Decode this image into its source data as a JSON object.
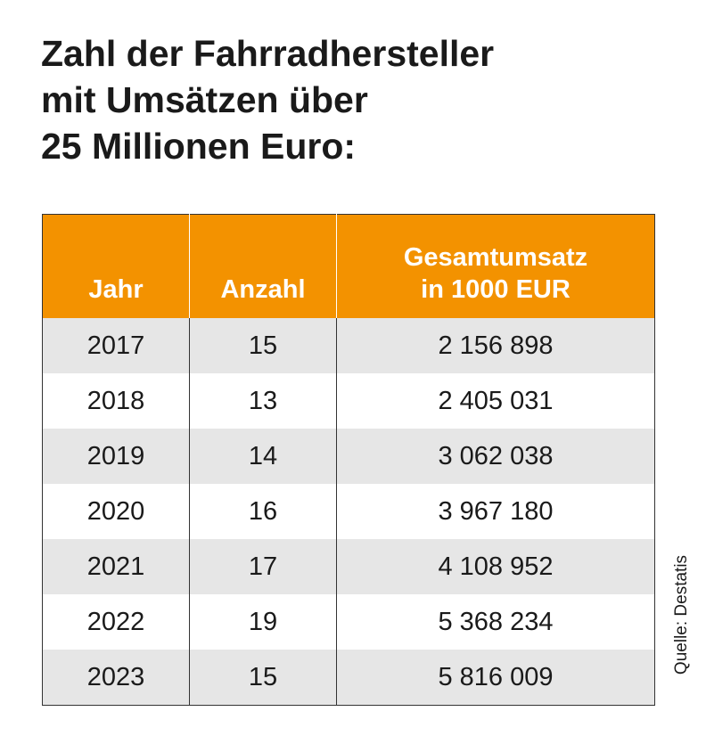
{
  "title_lines": [
    "Zahl der Fahrradhersteller",
    "mit Umsätzen über",
    "25 Millionen Euro:"
  ],
  "source": "Quelle: Destatis",
  "colors": {
    "header_bg": "#f39200",
    "stripe": "#e6e6e6",
    "header_text": "#ffffff"
  },
  "chart_data": {
    "type": "table",
    "title": "Zahl der Fahrradhersteller mit Umsätzen über 25 Millionen Euro:",
    "columns": [
      {
        "lines": [
          "Jahr"
        ]
      },
      {
        "lines": [
          "Anzahl"
        ]
      },
      {
        "lines": [
          "Gesamtumsatz",
          "in 1000 EUR"
        ]
      }
    ],
    "rows": [
      [
        "2017",
        "15",
        "2 156 898"
      ],
      [
        "2018",
        "13",
        "2 405 031"
      ],
      [
        "2019",
        "14",
        "3 062 038"
      ],
      [
        "2020",
        "16",
        "3 967 180"
      ],
      [
        "2021",
        "17",
        "4 108 952"
      ],
      [
        "2022",
        "19",
        "5 368 234"
      ],
      [
        "2023",
        "15",
        "5 816 009"
      ]
    ]
  }
}
